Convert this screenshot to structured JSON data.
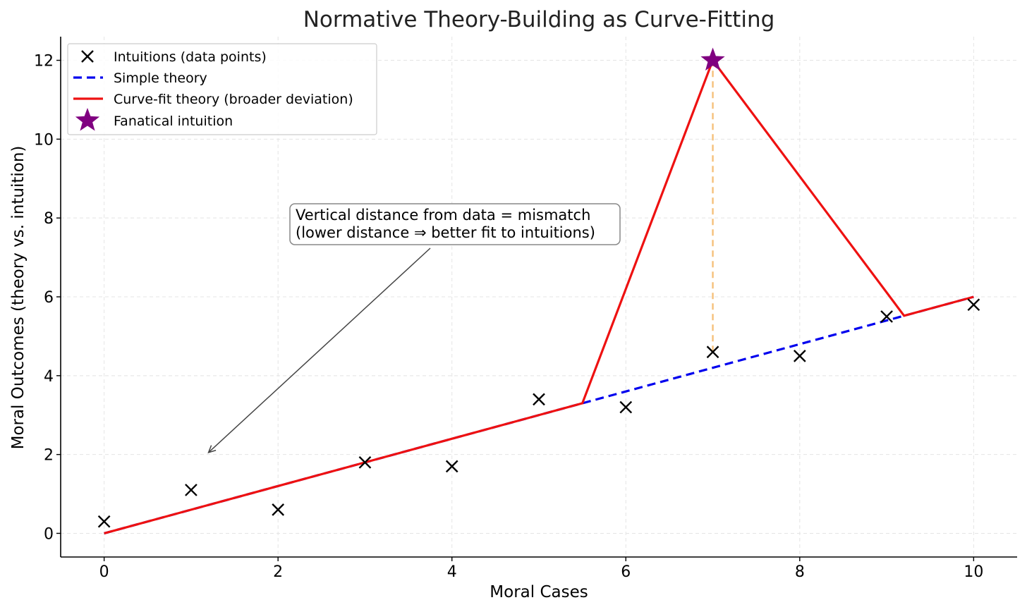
{
  "chart_data": {
    "type": "line",
    "title": "Normative Theory-Building as Curve-Fitting",
    "xlabel": "Moral Cases",
    "ylabel": "Moral Outcomes (theory vs. intuition)",
    "xlim": [
      -0.5,
      10.5
    ],
    "ylim": [
      -0.6,
      12.6
    ],
    "xticks": [
      0,
      2,
      4,
      6,
      8,
      10
    ],
    "yticks": [
      0,
      2,
      4,
      6,
      8,
      10,
      12
    ],
    "grid": true,
    "legend_position": "top-left",
    "series": [
      {
        "name": "Intuitions (data points)",
        "kind": "scatter",
        "marker": "x",
        "color": "#000000",
        "x": [
          0,
          1,
          2,
          3,
          4,
          5,
          6,
          7,
          8,
          9,
          10
        ],
        "y": [
          0.3,
          1.1,
          0.6,
          1.8,
          1.7,
          3.4,
          3.2,
          4.6,
          4.5,
          5.5,
          5.8
        ]
      },
      {
        "name": "Simple theory",
        "kind": "line",
        "style": "dashed",
        "color": "#0000ee",
        "x": [
          0,
          10
        ],
        "y": [
          0,
          6
        ]
      },
      {
        "name": "Curve-fit theory (broader deviation)",
        "kind": "line",
        "style": "solid",
        "color": "#ee1111",
        "x": [
          0,
          5.5,
          7,
          9.2,
          10
        ],
        "y": [
          0,
          3.3,
          12,
          5.52,
          6
        ]
      },
      {
        "name": "Fanatical intuition",
        "kind": "scatter",
        "marker": "star",
        "color": "#800080",
        "x": [
          7
        ],
        "y": [
          12
        ]
      }
    ],
    "deviation_line": {
      "x": 7,
      "y_from": 4.6,
      "y_to": 12,
      "color": "#f5c07a"
    },
    "annotation": {
      "lines": [
        "Vertical distance from data = mismatch",
        "(lower distance ⇒ better fit to intuitions)"
      ],
      "arrow_target": {
        "x": 1.2,
        "y": 2.05
      },
      "text_anchor": {
        "x": 2.2,
        "y": 8.0
      }
    }
  }
}
